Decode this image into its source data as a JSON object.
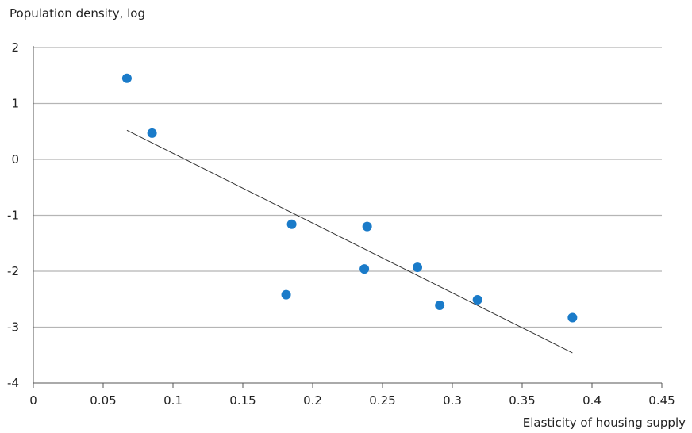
{
  "chart_data": {
    "type": "scatter",
    "title": "",
    "xlabel": "Elasticity of housing supply",
    "ylabel": "Population density, log",
    "xlim": [
      0,
      0.45
    ],
    "ylim": [
      -4,
      2
    ],
    "xticks": [
      0,
      0.05,
      0.1,
      0.15,
      0.2,
      0.25,
      0.3,
      0.35,
      0.4,
      0.45
    ],
    "xtick_labels": [
      "0",
      "0.05",
      "0.1",
      "0.15",
      "0.2",
      "0.25",
      "0.3",
      "0.35",
      "0.4",
      "0.45"
    ],
    "yticks": [
      -4,
      -3,
      -2,
      -1,
      0,
      1,
      2
    ],
    "ytick_labels": [
      "-4",
      "-3",
      "-2",
      "-1",
      "0",
      "1",
      "2"
    ],
    "grid": "horizontal",
    "points": [
      {
        "x": 0.067,
        "y": 1.45
      },
      {
        "x": 0.085,
        "y": 0.47
      },
      {
        "x": 0.181,
        "y": -2.42
      },
      {
        "x": 0.185,
        "y": -1.16
      },
      {
        "x": 0.237,
        "y": -1.96
      },
      {
        "x": 0.239,
        "y": -1.2
      },
      {
        "x": 0.275,
        "y": -1.93
      },
      {
        "x": 0.291,
        "y": -2.61
      },
      {
        "x": 0.318,
        "y": -2.51
      },
      {
        "x": 0.386,
        "y": -2.83
      }
    ],
    "trendline": {
      "x": [
        0.067,
        0.386
      ],
      "y": [
        0.52,
        -3.46
      ]
    },
    "colors": {
      "points": "#1a7bc9",
      "trendline": "#333333",
      "grid": "#b5b5b5",
      "axis": "#555555"
    }
  }
}
